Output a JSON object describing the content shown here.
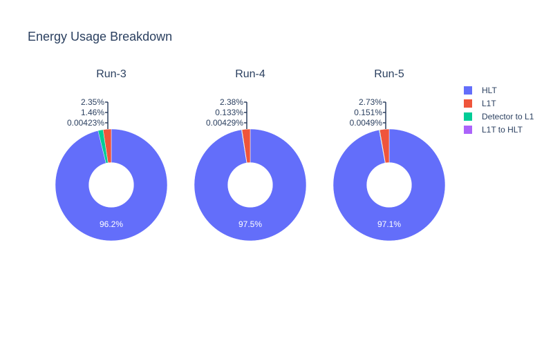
{
  "chart_data": {
    "type": "pie",
    "title": "Energy Usage Breakdown",
    "hole": 0.4,
    "legend": {
      "position": "top-right",
      "entries": [
        {
          "label": "HLT",
          "color": "#636efa"
        },
        {
          "label": "L1T",
          "color": "#ef553b"
        },
        {
          "label": "Detector to L1",
          "color": "#00cc96"
        },
        {
          "label": "L1T to HLT",
          "color": "#ab63fa"
        }
      ]
    },
    "charts": [
      {
        "title": "Run-3",
        "slices": [
          {
            "label": "HLT",
            "percent": 96.2,
            "text": "96.2%"
          },
          {
            "label": "L1T",
            "percent": 2.35,
            "text": "2.35%"
          },
          {
            "label": "Detector to L1",
            "percent": 1.46,
            "text": "1.46%"
          },
          {
            "label": "L1T to HLT",
            "percent": 0.00423,
            "text": "0.00423%"
          }
        ]
      },
      {
        "title": "Run-4",
        "slices": [
          {
            "label": "HLT",
            "percent": 97.5,
            "text": "97.5%"
          },
          {
            "label": "L1T",
            "percent": 2.38,
            "text": "2.38%"
          },
          {
            "label": "Detector to L1",
            "percent": 0.133,
            "text": "0.133%"
          },
          {
            "label": "L1T to HLT",
            "percent": 0.00429,
            "text": "0.00429%"
          }
        ]
      },
      {
        "title": "Run-5",
        "slices": [
          {
            "label": "HLT",
            "percent": 97.1,
            "text": "97.1%"
          },
          {
            "label": "L1T",
            "percent": 2.73,
            "text": "2.73%"
          },
          {
            "label": "Detector to L1",
            "percent": 0.151,
            "text": "0.151%"
          },
          {
            "label": "L1T to HLT",
            "percent": 0.0049,
            "text": "0.0049%"
          }
        ]
      }
    ]
  }
}
